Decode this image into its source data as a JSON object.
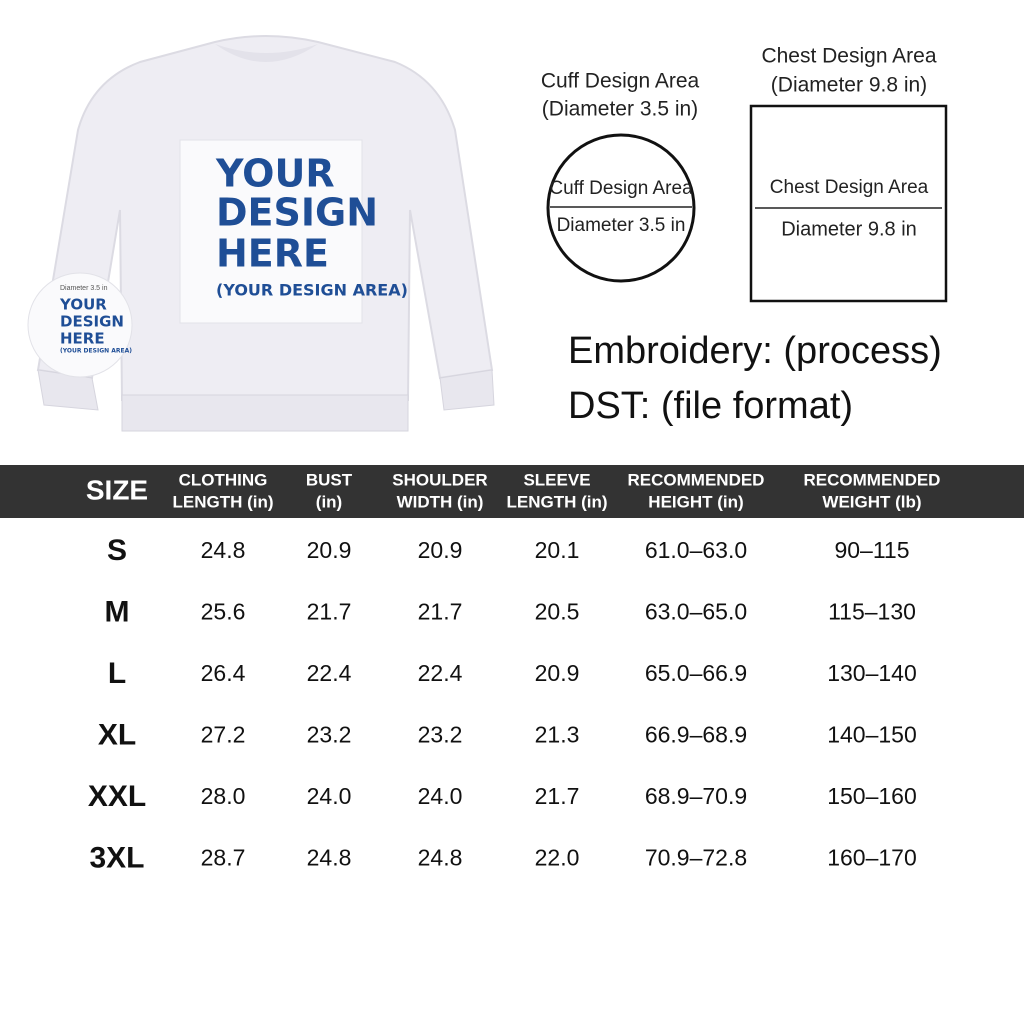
{
  "design": {
    "lines": [
      "YOUR",
      "DESIGN",
      "HERE"
    ],
    "area": "(YOUR DESIGN AREA)"
  },
  "sleeve_patch": {
    "caption": "Diameter 3.5 in",
    "lines": [
      "YOUR",
      "DESIGN",
      "HERE"
    ],
    "area": "(YOUR DESIGN AREA)"
  },
  "cuff": {
    "title": "Cuff Design Area",
    "subtitle": "(Diameter 3.5 in)",
    "inner_label": "Cuff Design Area",
    "inner_size": "Diameter 3.5 in"
  },
  "chest": {
    "title": "Chest Design Area",
    "subtitle": "(Diameter 9.8 in)",
    "inner_label": "Chest Design Area",
    "inner_size": "Diameter 9.8 in"
  },
  "process": [
    "Embroidery: (process)",
    "DST: (file format)"
  ],
  "table": {
    "header": [
      [
        "SIZE"
      ],
      [
        "CLOTHING",
        "LENGTH (in)"
      ],
      [
        "BUST",
        "(in)"
      ],
      [
        "SHOULDER",
        "WIDTH (in)"
      ],
      [
        "SLEEVE",
        "LENGTH (in)"
      ],
      [
        "RECOMMENDED",
        "HEIGHT (in)"
      ],
      [
        "RECOMMENDED",
        "WEIGHT (lb)"
      ]
    ],
    "rows": [
      [
        "S",
        "24.8",
        "20.9",
        "20.9",
        "20.1",
        "61.0–63.0",
        "90–115"
      ],
      [
        "M",
        "25.6",
        "21.7",
        "21.7",
        "20.5",
        "63.0–65.0",
        "115–130"
      ],
      [
        "L",
        "26.4",
        "22.4",
        "22.4",
        "20.9",
        "65.0–66.9",
        "130–140"
      ],
      [
        "XL",
        "27.2",
        "23.2",
        "23.2",
        "21.3",
        "66.9–68.9",
        "140–150"
      ],
      [
        "XXL",
        "28.0",
        "24.0",
        "24.0",
        "21.7",
        "68.9–70.9",
        "150–160"
      ],
      [
        "3XL",
        "28.7",
        "24.8",
        "24.8",
        "22.0",
        "70.9–72.8",
        "160–170"
      ]
    ]
  }
}
